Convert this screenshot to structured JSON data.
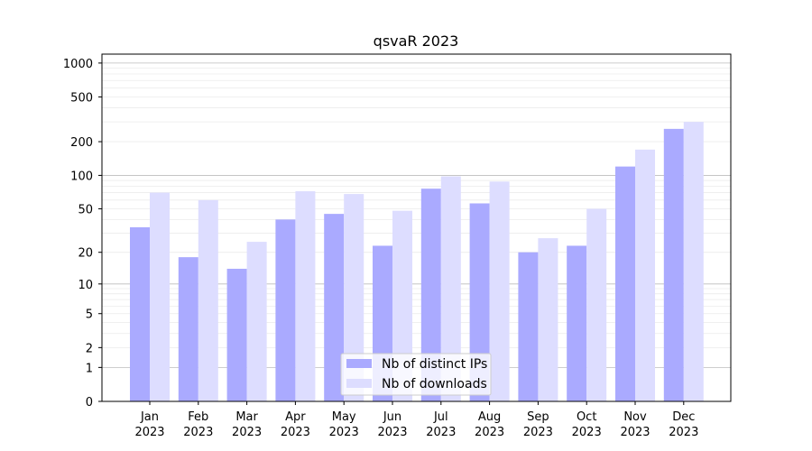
{
  "chart_data": {
    "type": "bar",
    "title": "qsvaR 2023",
    "xlabel": "",
    "ylabel": "",
    "scale": "log(1+y)",
    "ylim": [
      0,
      1200
    ],
    "yticks": [
      0,
      1,
      2,
      5,
      10,
      20,
      50,
      100,
      200,
      500,
      1000
    ],
    "grid": "y",
    "legend_position": "bottom-center",
    "categories": [
      [
        "Jan",
        "2023"
      ],
      [
        "Feb",
        "2023"
      ],
      [
        "Mar",
        "2023"
      ],
      [
        "Apr",
        "2023"
      ],
      [
        "May",
        "2023"
      ],
      [
        "Jun",
        "2023"
      ],
      [
        "Jul",
        "2023"
      ],
      [
        "Aug",
        "2023"
      ],
      [
        "Sep",
        "2023"
      ],
      [
        "Oct",
        "2023"
      ],
      [
        "Nov",
        "2023"
      ],
      [
        "Dec",
        "2023"
      ]
    ],
    "series": [
      {
        "name": "Nb of distinct IPs",
        "color": "#aaaaff",
        "values": [
          34,
          18,
          14,
          40,
          45,
          23,
          76,
          56,
          20,
          23,
          120,
          260
        ]
      },
      {
        "name": "Nb of downloads",
        "color": "#ddddff",
        "values": [
          70,
          60,
          25,
          72,
          68,
          48,
          98,
          88,
          27,
          50,
          170,
          300
        ]
      }
    ]
  }
}
